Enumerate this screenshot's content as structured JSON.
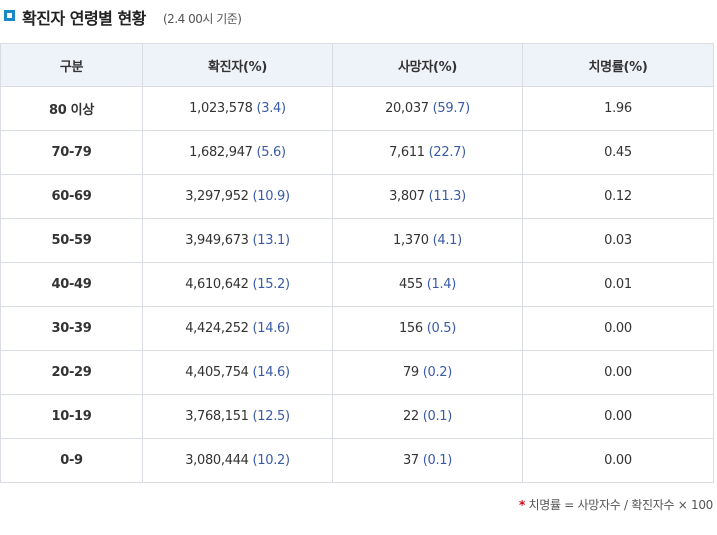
{
  "title": "확진자 연령별 현황",
  "subtitle": "(2.4 00시 기준)",
  "table": {
    "headers": [
      "구분",
      "확진자(%)",
      "사망자(%)",
      "치명률(%)"
    ],
    "rows": [
      {
        "age": "80 이상",
        "cases": "1,023,578",
        "cases_pct": "(3.4)",
        "deaths": "20,037",
        "deaths_pct": "(59.7)",
        "rate": "1.96"
      },
      {
        "age": "70-79",
        "cases": "1,682,947",
        "cases_pct": "(5.6)",
        "deaths": "7,611",
        "deaths_pct": "(22.7)",
        "rate": "0.45"
      },
      {
        "age": "60-69",
        "cases": "3,297,952",
        "cases_pct": "(10.9)",
        "deaths": "3,807",
        "deaths_pct": "(11.3)",
        "rate": "0.12"
      },
      {
        "age": "50-59",
        "cases": "3,949,673",
        "cases_pct": "(13.1)",
        "deaths": "1,370",
        "deaths_pct": "(4.1)",
        "rate": "0.03"
      },
      {
        "age": "40-49",
        "cases": "4,610,642",
        "cases_pct": "(15.2)",
        "deaths": "455",
        "deaths_pct": "(1.4)",
        "rate": "0.01"
      },
      {
        "age": "30-39",
        "cases": "4,424,252",
        "cases_pct": "(14.6)",
        "deaths": "156",
        "deaths_pct": "(0.5)",
        "rate": "0.00"
      },
      {
        "age": "20-29",
        "cases": "4,405,754",
        "cases_pct": "(14.6)",
        "deaths": "79",
        "deaths_pct": "(0.2)",
        "rate": "0.00"
      },
      {
        "age": "10-19",
        "cases": "3,768,151",
        "cases_pct": "(12.5)",
        "deaths": "22",
        "deaths_pct": "(0.1)",
        "rate": "0.00"
      },
      {
        "age": "0-9",
        "cases": "3,080,444",
        "cases_pct": "(10.2)",
        "deaths": "37",
        "deaths_pct": "(0.1)",
        "rate": "0.00"
      }
    ]
  },
  "footnote": {
    "marker": "*",
    "text": "치명률 = 사망자수 / 확진자수 × 100"
  },
  "colors": {
    "accent": "#1a88c9",
    "header_bg": "#eef3f9",
    "percent_text": "#3a5ca6",
    "footnote_marker": "#d0021b"
  }
}
